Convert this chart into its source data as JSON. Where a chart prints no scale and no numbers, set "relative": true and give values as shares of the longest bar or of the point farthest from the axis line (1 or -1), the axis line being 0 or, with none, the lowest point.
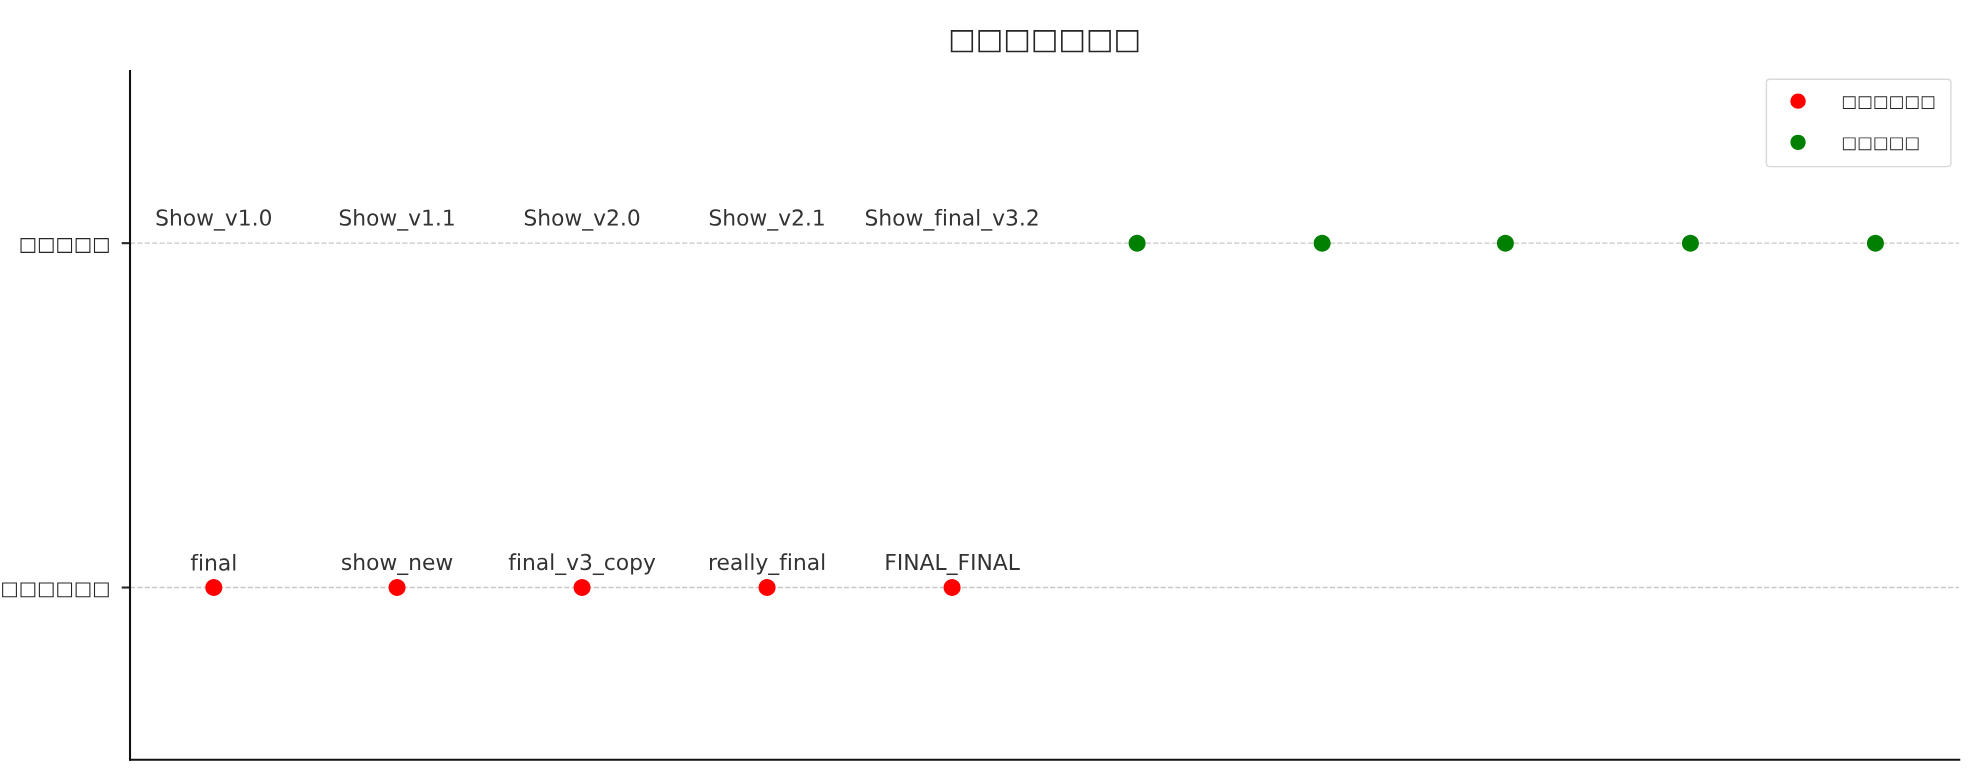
{
  "chart_data": {
    "type": "scatter",
    "title": "□□□□□□□",
    "orientation": "horizontal",
    "relative": true,
    "categories": [
      "□□□□□",
      "□□□□□□"
    ],
    "tick_labels": "y",
    "grid": "y",
    "legend": "top right",
    "marker": "circle",
    "series": [
      {
        "name": "□□□□□□",
        "color": "#ff0000",
        "x": [
          "□□□□□□",
          "□□□□□□",
          "□□□□□□",
          "□□□□□□",
          "□□□□□□"
        ],
        "values": [
          0.048,
          0.153,
          0.259,
          0.365,
          0.471
        ]
      },
      {
        "name": "□□□□□",
        "color": "#008000",
        "x": [
          "□□□□□",
          "□□□□□",
          "□□□□□",
          "□□□□□",
          "□□□□□"
        ],
        "values": [
          0.577,
          0.683,
          0.788,
          0.894,
          1
        ]
      }
    ],
    "annotations": [
      {
        "text": "final",
        "x": 0.048,
        "y": "□□□□□□"
      },
      {
        "text": "show_new",
        "x": 0.153,
        "y": "□□□□□□"
      },
      {
        "text": "final_v3_copy",
        "x": 0.259,
        "y": "□□□□□□"
      },
      {
        "text": "really_final",
        "x": 0.365,
        "y": "□□□□□□"
      },
      {
        "text": "FINAL_FINAL",
        "x": 0.471,
        "y": "□□□□□□"
      },
      "Show_v1.0",
      "Show_v1.1",
      "Show_v2.0",
      "Show_v2.1",
      "Show_final_v3.2"
    ]
  }
}
